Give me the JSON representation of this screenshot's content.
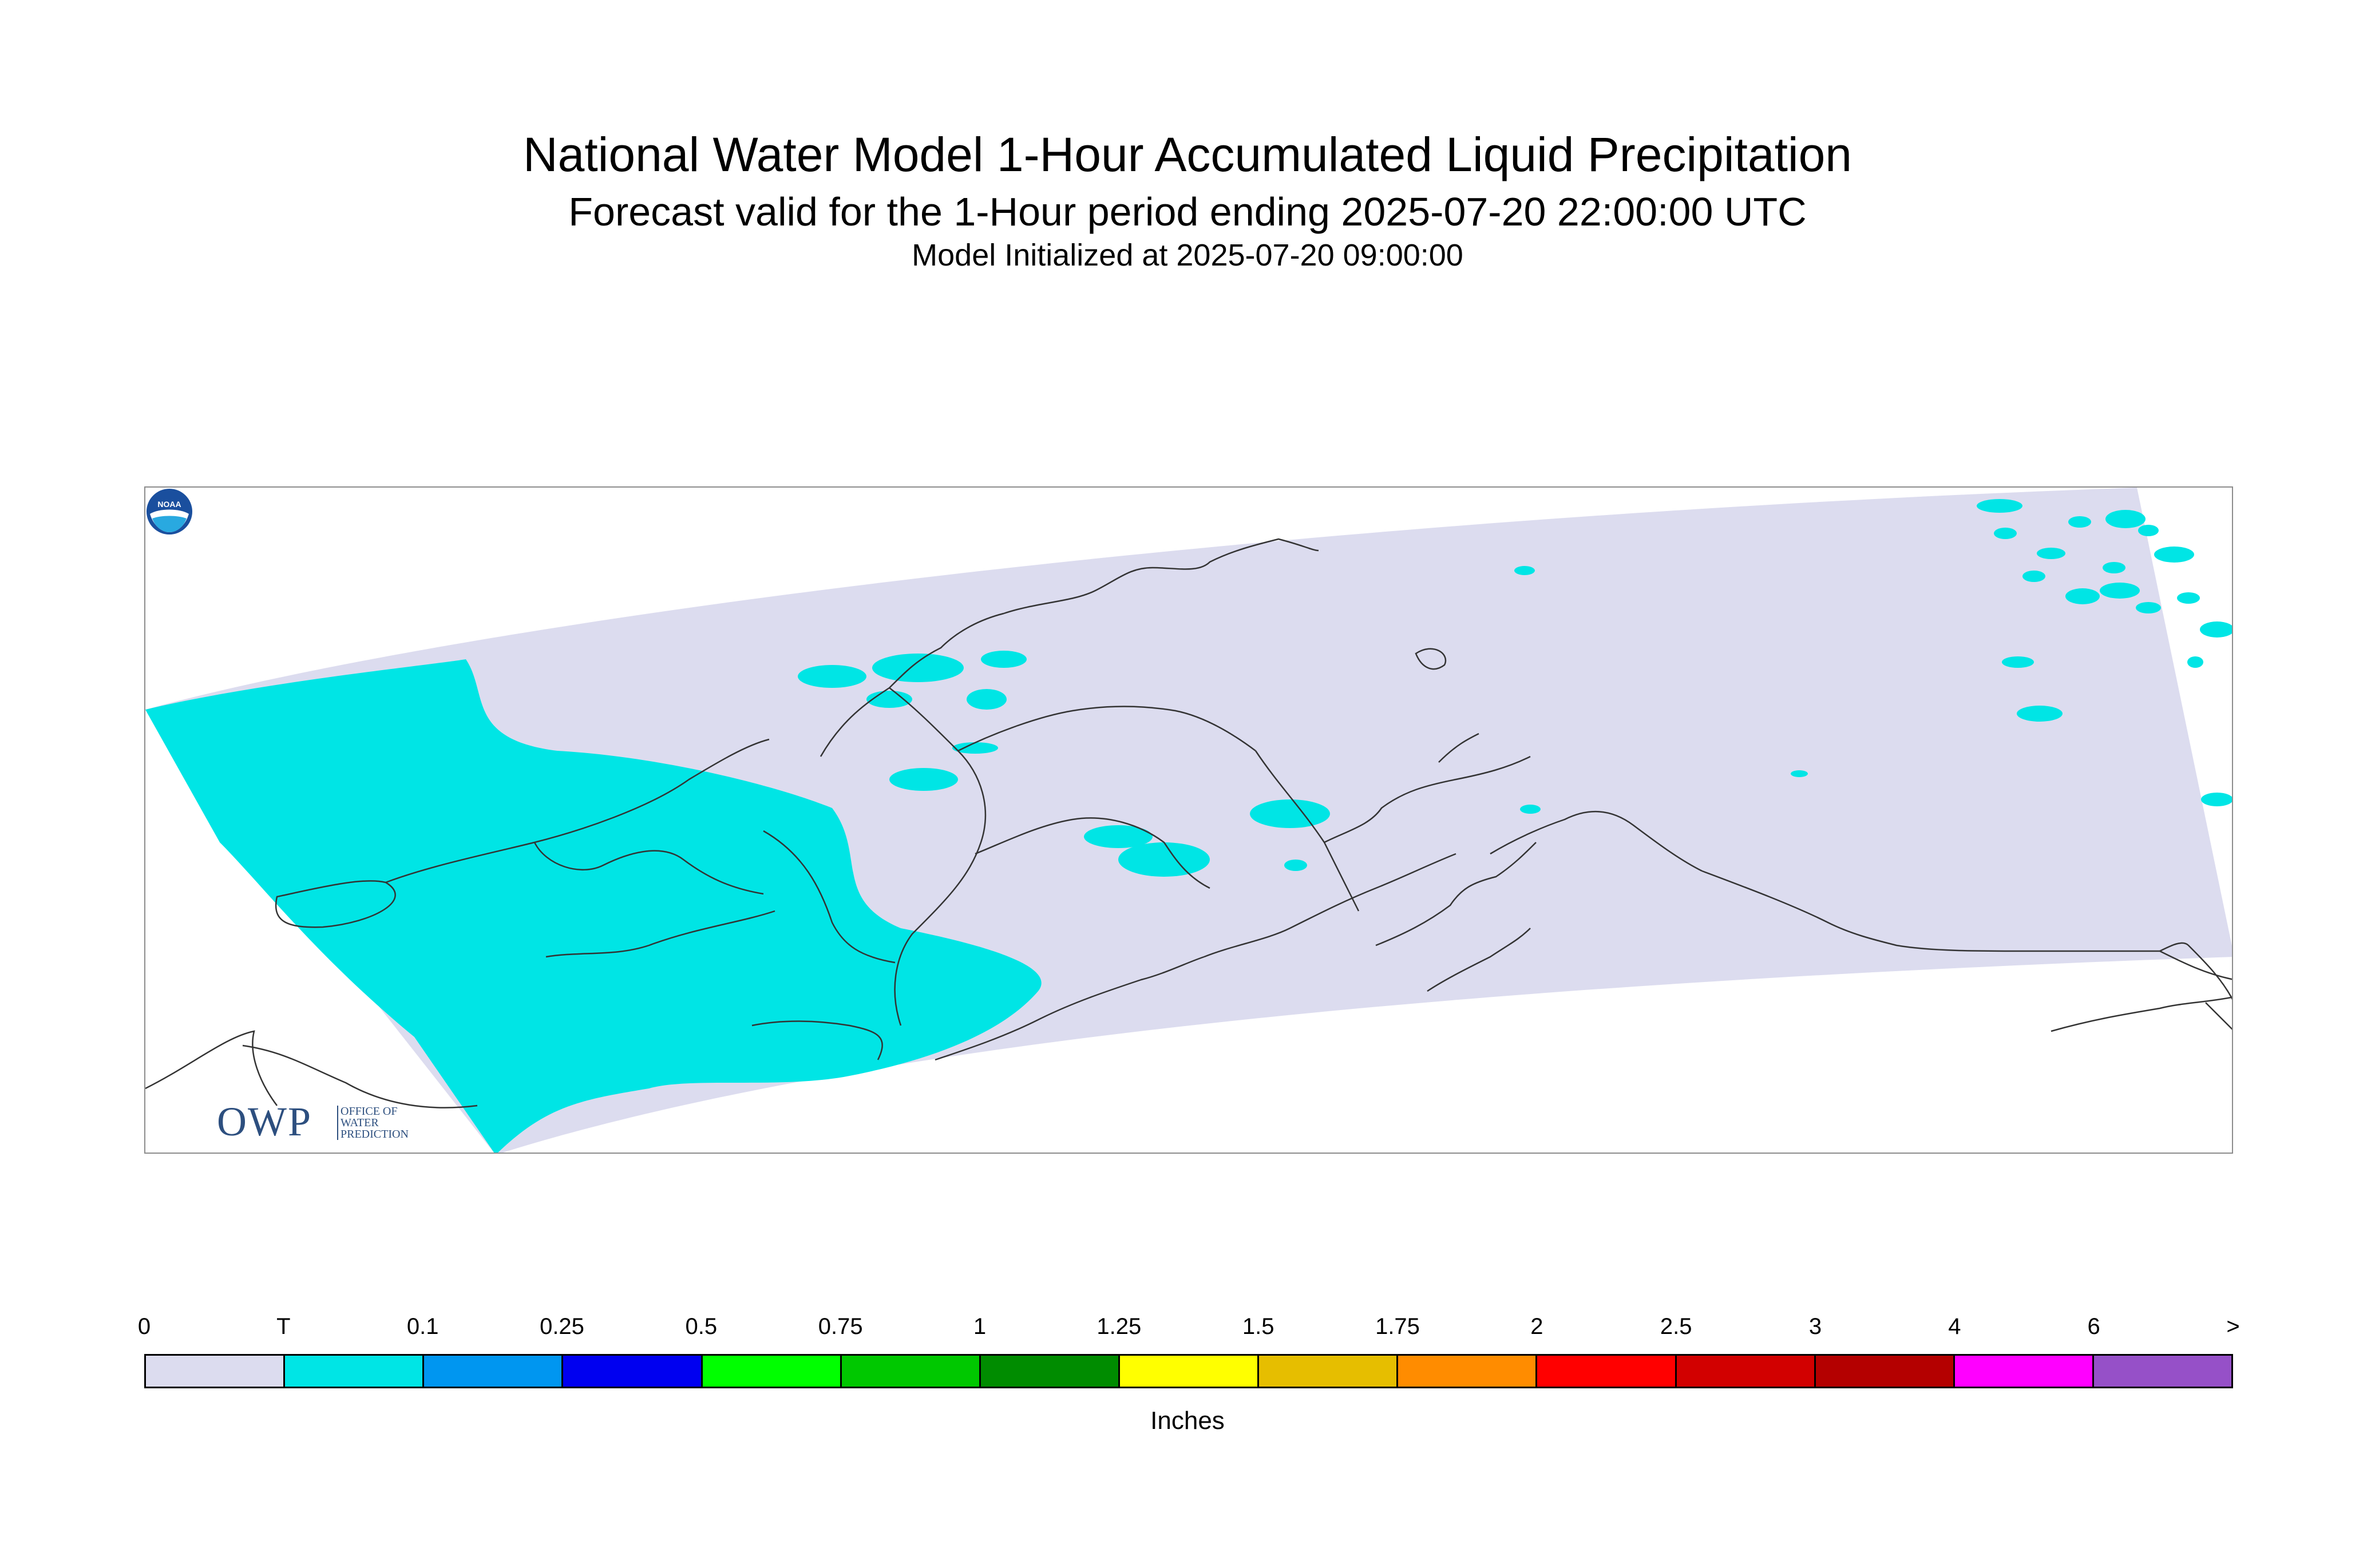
{
  "header": {
    "title": "National Water Model 1-Hour Accumulated Liquid Precipitation",
    "subtitle": "Forecast valid for the 1-Hour period ending 2025-07-20 22:00:00 UTC",
    "init": "Model Initialized at 2025-07-20 09:00:00"
  },
  "map": {
    "domain_color": "#dcdcef",
    "trace_color": "#00e5e5",
    "coast_color": "#333333",
    "logos": {
      "owp_letters": "OWP",
      "owp_sub_lines": [
        "OFFICE OF",
        "WATER",
        "PREDICTION"
      ],
      "noaa_text": "NOAA"
    }
  },
  "legend": {
    "labels": [
      "0",
      "T",
      "0.1",
      "0.25",
      "0.5",
      "0.75",
      "1",
      "1.25",
      "1.5",
      "1.75",
      "2",
      "2.5",
      "3",
      "4",
      "6",
      ">"
    ],
    "colors": [
      "#dcdcef",
      "#00e5e5",
      "#0096f0",
      "#0000f0",
      "#00ff00",
      "#00c800",
      "#008c00",
      "#ffff00",
      "#e6be00",
      "#ff8c00",
      "#ff0000",
      "#d20000",
      "#b40000",
      "#ff00ff",
      "#9650c8"
    ],
    "units": "Inches"
  }
}
